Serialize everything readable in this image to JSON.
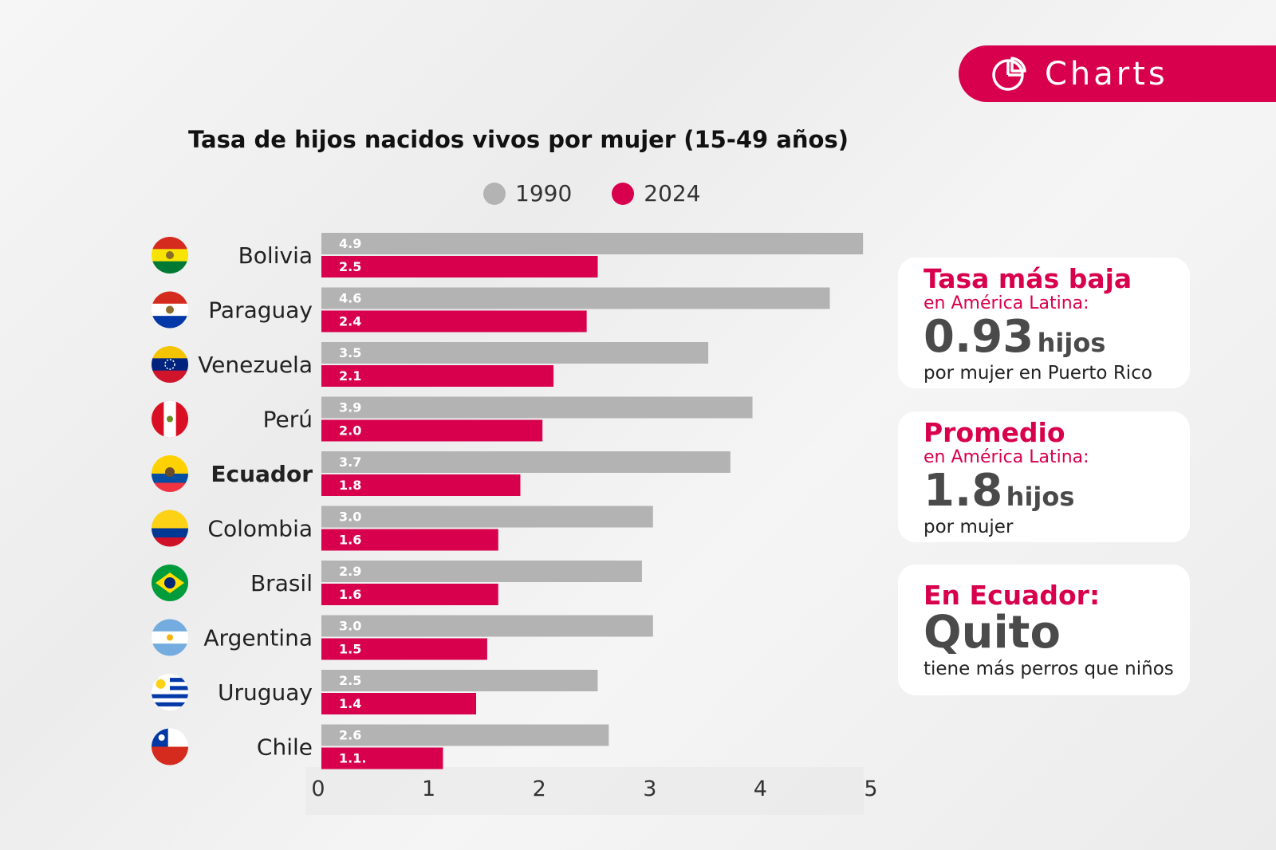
{
  "brand": {
    "label": "Charts",
    "icon": "pie-chart-icon"
  },
  "colors": {
    "accent": "#d8004c",
    "series_1990": "#b3b3b3",
    "series_2024": "#d8004c"
  },
  "chart_data": {
    "type": "bar",
    "orientation": "horizontal",
    "title": "Tasa de hijos nacidos vivos por mujer (15-49 años)",
    "categories": [
      "Bolivia",
      "Paraguay",
      "Venezuela",
      "Perú",
      "Ecuador",
      "Colombia",
      "Brasil",
      "Argentina",
      "Uruguay",
      "Chile"
    ],
    "highlighted_category": "Ecuador",
    "flags": [
      "bolivia-flag-icon",
      "paraguay-flag-icon",
      "venezuela-flag-icon",
      "peru-flag-icon",
      "ecuador-flag-icon",
      "colombia-flag-icon",
      "brazil-flag-icon",
      "argentina-flag-icon",
      "uruguay-flag-icon",
      "chile-flag-icon"
    ],
    "series": [
      {
        "name": "1990",
        "color": "#b3b3b3",
        "values": [
          4.9,
          4.6,
          3.5,
          3.9,
          3.7,
          3.0,
          2.9,
          3.0,
          2.5,
          2.6
        ],
        "labels": [
          "4.9",
          "4.6",
          "3.5",
          "3.9",
          "3.7",
          "3.0",
          "2.9",
          "3.0",
          "2.5",
          "2.6"
        ]
      },
      {
        "name": "2024",
        "color": "#d8004c",
        "values": [
          2.5,
          2.4,
          2.1,
          2.0,
          1.8,
          1.6,
          1.6,
          1.5,
          1.4,
          1.1
        ],
        "labels": [
          "2.5",
          "2.4",
          "2.1",
          "2.0",
          "1.8",
          "1.6",
          "1.6",
          "1.5",
          "1.4",
          "1.1."
        ]
      }
    ],
    "xlim": [
      0,
      5
    ],
    "xticks": [
      "0",
      "1",
      "2",
      "3",
      "4",
      "5"
    ],
    "xlabel": "",
    "ylabel": "",
    "legend": "top-center",
    "grid": false
  },
  "cards": [
    {
      "heading": "Tasa más baja",
      "sub": "en América Latina:",
      "big": "0.93",
      "unit": "hijos",
      "note": "por mujer en Puerto Rico"
    },
    {
      "heading": "Promedio",
      "sub": "en América Latina:",
      "big": "1.8",
      "unit": "hijos",
      "note": "por mujer"
    },
    {
      "heading": "En Ecuador:",
      "big": "Quito",
      "note": "tiene más perros que niños"
    }
  ]
}
